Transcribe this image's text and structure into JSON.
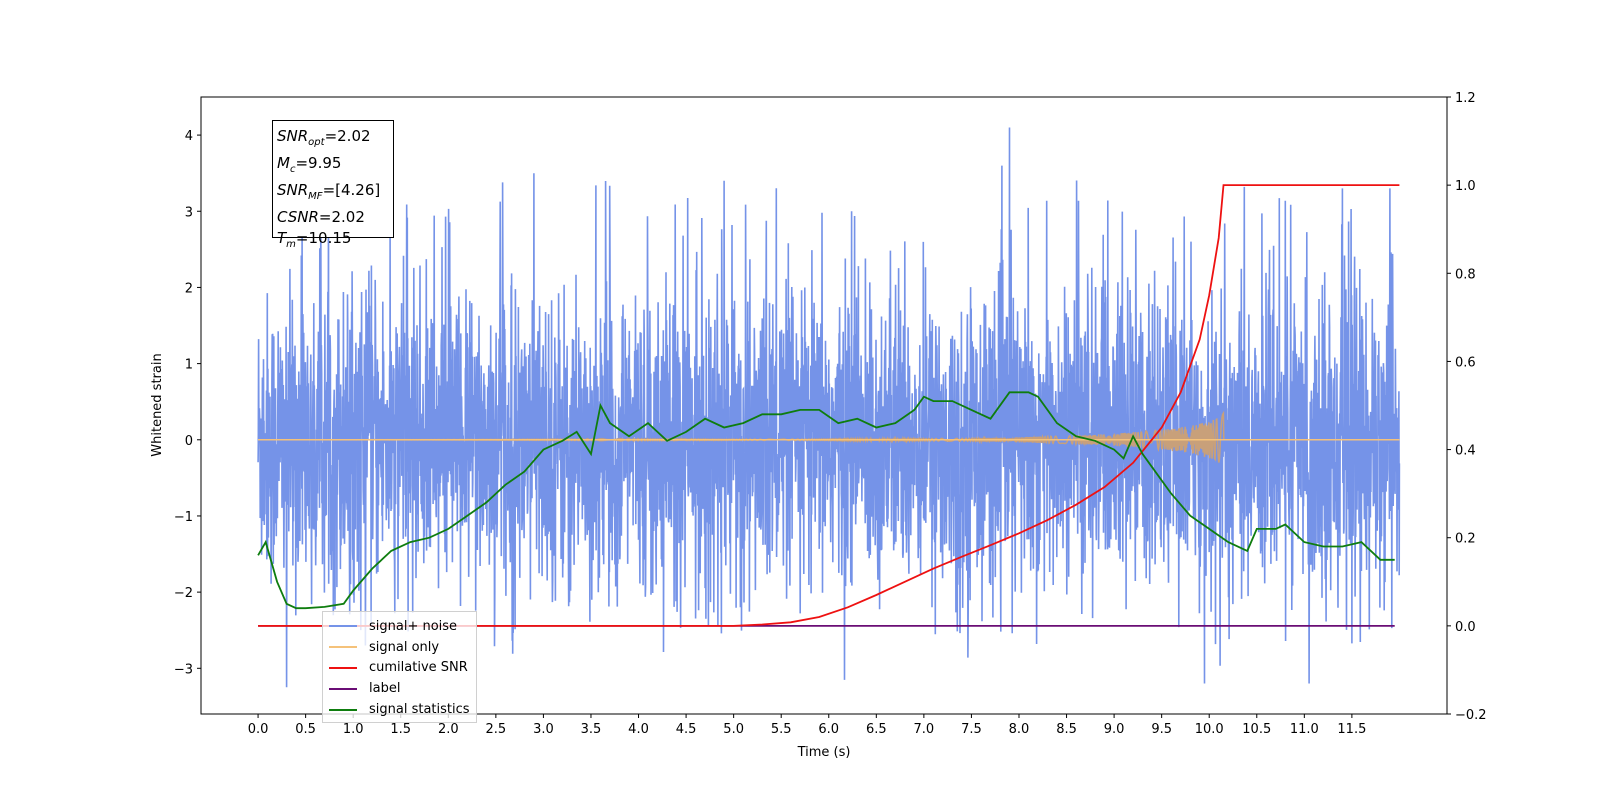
{
  "chart_data": {
    "type": "line",
    "xlabel": "Time (s)",
    "ylabel": "Whitened strain",
    "xlim": [
      -0.6,
      12.5
    ],
    "ylim": [
      -3.6,
      4.5
    ],
    "y2lim": [
      -0.2,
      1.2
    ],
    "x_ticks": [
      "0.0",
      "0.5",
      "1.0",
      "1.5",
      "2.0",
      "2.5",
      "3.0",
      "3.5",
      "4.0",
      "4.5",
      "5.0",
      "5.5",
      "6.0",
      "6.5",
      "7.0",
      "7.5",
      "8.0",
      "8.5",
      "9.0",
      "9.5",
      "10.0",
      "10.5",
      "11.0",
      "11.5"
    ],
    "y_ticks": [
      "−3",
      "−2",
      "−1",
      "0",
      "1",
      "2",
      "3",
      "4"
    ],
    "y2_ticks": [
      "−0.2",
      "0.0",
      "0.2",
      "0.4",
      "0.6",
      "0.8",
      "1.0",
      "1.2"
    ],
    "annotation": [
      {
        "name": "SNR",
        "sub": "opt",
        "value": "=2.02"
      },
      {
        "name": "M",
        "sub": "c",
        "value": "=9.95"
      },
      {
        "name": "SNR",
        "sub": "MF",
        "value": "=[4.26]"
      },
      {
        "name": "CSNR",
        "sub": "",
        "value": "=2.02"
      },
      {
        "name": "T",
        "sub": "m",
        "value": "=10.15"
      }
    ],
    "legend_placement": "lower-left",
    "legend": [
      {
        "label": "signal+ noise",
        "color": "#7593e8"
      },
      {
        "label": "signal only",
        "color": "#f5c27a"
      },
      {
        "label": "cumilative SNR",
        "color": "#ee1111"
      },
      {
        "label": "label",
        "color": "#6a0d75"
      },
      {
        "label": "signal statistics",
        "color": "#0e7d0e"
      }
    ],
    "series": [
      {
        "name": "signal+ noise",
        "axis": "left",
        "color": "#7593e8",
        "description_values": {
          "t_start": 0.0,
          "t_end": 12.0,
          "mean": 0.0,
          "approx_range": [
            -3.3,
            4.1
          ],
          "peaks": [
            [
              7.9,
              4.1
            ],
            [
              4.9,
              3.4
            ],
            [
              2.9,
              3.5
            ],
            [
              11.4,
              3.3
            ],
            [
              11.9,
              3.3
            ],
            [
              0.3,
              -3.25
            ],
            [
              11.05,
              -3.2
            ],
            [
              9.95,
              -3.2
            ]
          ]
        }
      },
      {
        "name": "signal only",
        "axis": "left",
        "color": "#f5c27a",
        "envelope": [
          [
            0.0,
            0.0
          ],
          [
            6.0,
            0.01
          ],
          [
            7.5,
            0.02
          ],
          [
            8.5,
            0.05
          ],
          [
            9.0,
            0.08
          ],
          [
            9.5,
            0.13
          ],
          [
            9.8,
            0.18
          ],
          [
            10.0,
            0.24
          ],
          [
            10.1,
            0.3
          ],
          [
            10.15,
            0.35
          ]
        ],
        "end_time": 10.15
      },
      {
        "name": "cumilative SNR",
        "axis": "right",
        "color": "#ee1111",
        "x": [
          0.0,
          5.0,
          5.3,
          5.6,
          5.9,
          6.2,
          6.5,
          6.8,
          7.1,
          7.4,
          7.7,
          8.0,
          8.3,
          8.6,
          8.9,
          9.2,
          9.5,
          9.7,
          9.9,
          10.0,
          10.1,
          10.15,
          11.0,
          12.0
        ],
        "values": [
          0.0,
          0.0,
          0.003,
          0.008,
          0.02,
          0.042,
          0.07,
          0.1,
          0.13,
          0.157,
          0.183,
          0.21,
          0.24,
          0.275,
          0.315,
          0.37,
          0.45,
          0.53,
          0.65,
          0.75,
          0.88,
          1.0,
          1.0,
          1.0
        ]
      },
      {
        "name": "label",
        "axis": "right",
        "color": "#6a0d75",
        "x": [
          0.0,
          11.95
        ],
        "values": [
          0.0,
          0.0
        ]
      },
      {
        "name": "signal statistics",
        "axis": "right",
        "color": "#0e7d0e",
        "x": [
          0.0,
          0.08,
          0.2,
          0.3,
          0.4,
          0.5,
          0.7,
          0.9,
          1.0,
          1.2,
          1.4,
          1.6,
          1.8,
          2.0,
          2.2,
          2.4,
          2.6,
          2.8,
          3.0,
          3.2,
          3.35,
          3.5,
          3.6,
          3.7,
          3.9,
          4.1,
          4.3,
          4.5,
          4.7,
          4.9,
          5.1,
          5.3,
          5.5,
          5.7,
          5.9,
          6.1,
          6.3,
          6.5,
          6.7,
          6.9,
          7.0,
          7.1,
          7.3,
          7.5,
          7.7,
          7.9,
          8.1,
          8.2,
          8.4,
          8.6,
          8.8,
          9.0,
          9.1,
          9.2,
          9.3,
          9.4,
          9.6,
          9.8,
          10.0,
          10.2,
          10.4,
          10.5,
          10.7,
          10.8,
          11.0,
          11.2,
          11.4,
          11.6,
          11.8,
          11.95
        ],
        "values": [
          0.16,
          0.19,
          0.1,
          0.05,
          0.04,
          0.04,
          0.043,
          0.05,
          0.08,
          0.13,
          0.17,
          0.19,
          0.2,
          0.22,
          0.25,
          0.28,
          0.32,
          0.35,
          0.4,
          0.42,
          0.44,
          0.39,
          0.5,
          0.46,
          0.43,
          0.46,
          0.42,
          0.44,
          0.47,
          0.45,
          0.46,
          0.48,
          0.48,
          0.49,
          0.49,
          0.46,
          0.47,
          0.45,
          0.46,
          0.49,
          0.52,
          0.51,
          0.51,
          0.49,
          0.47,
          0.53,
          0.53,
          0.52,
          0.46,
          0.43,
          0.42,
          0.4,
          0.38,
          0.43,
          0.39,
          0.36,
          0.3,
          0.25,
          0.22,
          0.19,
          0.17,
          0.22,
          0.22,
          0.23,
          0.19,
          0.18,
          0.18,
          0.19,
          0.15,
          0.15
        ]
      }
    ]
  }
}
